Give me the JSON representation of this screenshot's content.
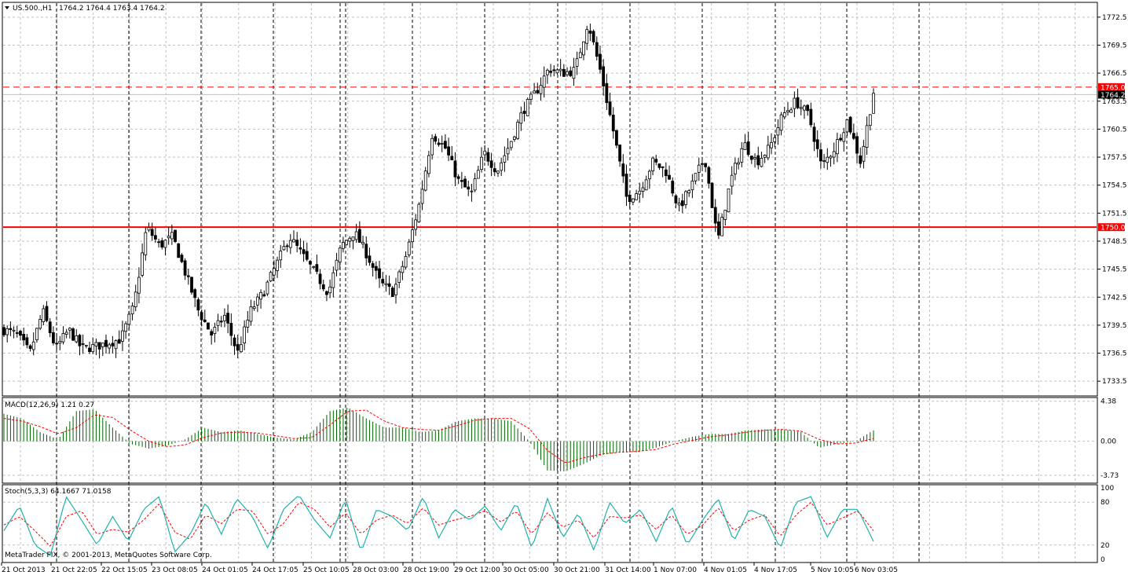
{
  "header": {
    "symbol_title": "US.500.,H1",
    "ohlc": "1764.2 1764.4 1763.4 1764.2"
  },
  "footer": {
    "copyright": "MetaTrader FIX, © 2001-2013, MetaQuotes Software Corp."
  },
  "colors": {
    "bull_candle": "#ffffff",
    "bear_candle": "#000000",
    "grid": "#c0c0c0",
    "resistance": "#ff0000",
    "macd_hist": "#006400",
    "signal": "#ff0000",
    "stoch_main": "#20b2aa",
    "stoch_signal": "#ff0000"
  },
  "chart_data": [
    {
      "type": "candlestick",
      "name": "US.500.,H1",
      "ylim": [
        1732.0,
        1774.0
      ],
      "y_ticks": [
        "1772.5",
        "1769.5",
        "1766.5",
        "1763.5",
        "1760.5",
        "1757.5",
        "1754.5",
        "1751.5",
        "1748.5",
        "1745.5",
        "1742.5",
        "1739.5",
        "1736.5",
        "1733.5"
      ],
      "x_labels": [
        "21 Oct 2013",
        "21 Oct 22:05",
        "22 Oct 15:05",
        "23 Oct 08:05",
        "24 Oct 01:05",
        "24 Oct 17:05",
        "25 Oct 10:05",
        "28 Oct 03:00",
        "28 Oct 19:00",
        "29 Oct 12:00",
        "30 Oct 05:00",
        "30 Oct 21:00",
        "31 Oct 14:00",
        "1 Nov 07:00",
        "4 Nov 01:05",
        "4 Nov 17:05",
        "5 Nov 10:05",
        "6 Nov 03:05"
      ],
      "horizontal_lines": [
        {
          "label": "1765.0",
          "value": 1765.0,
          "style": "dashed"
        },
        {
          "label": "1750.0",
          "value": 1750.0,
          "style": "solid"
        }
      ],
      "current_price": {
        "label": "1764.2",
        "value": 1764.2
      },
      "keypoints": [
        1739.0,
        1738.5,
        1736.5,
        1741.0,
        1737.0,
        1739.0,
        1737.0,
        1737.2,
        1737.6,
        1738.0,
        1741.5,
        1750.0,
        1748.0,
        1749.0,
        1745.0,
        1741.0,
        1738.5,
        1740.5,
        1736.5,
        1741.0,
        1743.0,
        1746.0,
        1749.0,
        1747.0,
        1745.0,
        1743.0,
        1748.0,
        1749.5,
        1747.0,
        1744.0,
        1743.0,
        1747.0,
        1752.5,
        1760.0,
        1758.5,
        1755.0,
        1753.5,
        1758.0,
        1756.0,
        1759.0,
        1762.5,
        1764.5,
        1767.0,
        1766.5,
        1766.8,
        1772.0,
        1766.5,
        1760.0,
        1753.0,
        1754.0,
        1757.0,
        1756.0,
        1752.0,
        1754.5,
        1757.5,
        1748.5,
        1755.0,
        1759.0,
        1757.0,
        1758.5,
        1762.0,
        1763.5,
        1762.0,
        1756.5,
        1758.5,
        1761.5,
        1757.0,
        1764.5
      ]
    },
    {
      "type": "histogram",
      "name": "MACD",
      "title": "MACD(12,26,9) 1.21 0.27",
      "ylim": [
        -4.5,
        4.7
      ],
      "y_ticks": [
        "4.38",
        "0.00",
        "-3.73"
      ],
      "keypoints": [
        3.0,
        2.5,
        1.0,
        0.2,
        3.3,
        3.5,
        1.5,
        -0.3,
        -0.8,
        -0.5,
        0.2,
        1.5,
        1.0,
        1.2,
        0.8,
        0.4,
        0.2,
        1.0,
        3.3,
        3.7,
        2.5,
        1.5,
        1.5,
        1.0,
        1.2,
        2.2,
        2.5,
        2.5,
        2.2,
        0.0,
        -3.2,
        -3.3,
        -2.5,
        -1.5,
        -1.2,
        -1.2,
        -0.7,
        0.0,
        0.5,
        0.8,
        0.8,
        1.2,
        1.3,
        1.3,
        1.0,
        -0.7,
        -0.3,
        0.0,
        1.2
      ],
      "signal_keypoints": [
        2.5,
        2.2,
        1.6,
        0.8,
        1.5,
        2.9,
        2.6,
        1.2,
        0.0,
        -0.6,
        -0.4,
        0.4,
        0.9,
        1.0,
        0.9,
        0.6,
        0.3,
        0.4,
        1.8,
        3.3,
        3.4,
        2.2,
        1.5,
        1.3,
        1.2,
        1.7,
        2.3,
        2.5,
        2.5,
        1.4,
        -1.0,
        -2.4,
        -1.8,
        -1.4,
        -1.2,
        -1.1,
        -0.9,
        -0.3,
        0.1,
        0.5,
        0.7,
        1.0,
        1.2,
        1.3,
        1.1,
        0.2,
        -0.3,
        -0.2,
        0.3
      ]
    },
    {
      "type": "line",
      "name": "Stochastic",
      "title": "Stoch(5,3,3) 64.1667 71.0158",
      "ylim": [
        0,
        100
      ],
      "y_ticks": [
        "100",
        "80",
        "20",
        "0"
      ],
      "main_keypoints": [
        40,
        75,
        20,
        5,
        88,
        55,
        20,
        60,
        25,
        70,
        88,
        10,
        35,
        80,
        35,
        85,
        60,
        15,
        70,
        90,
        55,
        30,
        85,
        10,
        70,
        60,
        40,
        88,
        30,
        70,
        55,
        75,
        40,
        80,
        15,
        85,
        30,
        65,
        12,
        80,
        50,
        70,
        25,
        75,
        20,
        55,
        85,
        25,
        70,
        60,
        15,
        80,
        88,
        30,
        70,
        70,
        25
      ],
      "signal_keypoints": [
        48,
        60,
        40,
        18,
        60,
        68,
        35,
        42,
        38,
        55,
        78,
        38,
        28,
        62,
        50,
        70,
        68,
        35,
        50,
        80,
        70,
        45,
        65,
        35,
        55,
        62,
        50,
        72,
        48,
        55,
        60,
        68,
        52,
        68,
        35,
        65,
        45,
        55,
        30,
        60,
        58,
        62,
        42,
        62,
        35,
        48,
        72,
        40,
        55,
        62,
        32,
        62,
        80,
        48,
        58,
        68,
        40
      ]
    }
  ]
}
